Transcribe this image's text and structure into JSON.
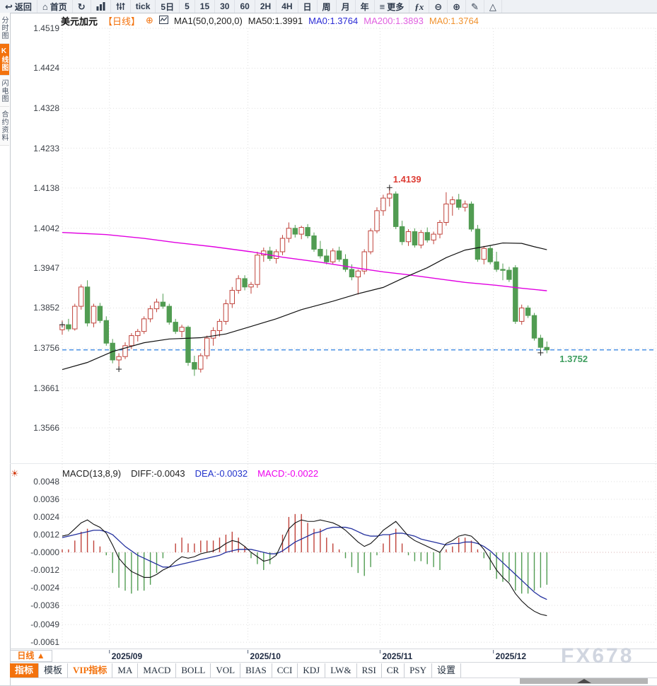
{
  "toolbar": {
    "items": [
      {
        "name": "back-button",
        "icon": "back",
        "label": "返回"
      },
      {
        "name": "home-button",
        "icon": "home",
        "label": "首页"
      },
      {
        "name": "refresh-button",
        "icon": "refresh",
        "label": ""
      },
      {
        "name": "chart-style-button",
        "icon": "bars",
        "label": ""
      },
      {
        "name": "indicator-style-button",
        "icon": "sliders",
        "label": ""
      },
      {
        "name": "period-tick-button",
        "icon": "",
        "label": "tick"
      },
      {
        "name": "period-5d-button",
        "icon": "",
        "label": "5日"
      },
      {
        "name": "period-5-button",
        "icon": "",
        "label": "5"
      },
      {
        "name": "period-15-button",
        "icon": "",
        "label": "15"
      },
      {
        "name": "period-30-button",
        "icon": "",
        "label": "30"
      },
      {
        "name": "period-60-button",
        "icon": "",
        "label": "60"
      },
      {
        "name": "period-2h-button",
        "icon": "",
        "label": "2H"
      },
      {
        "name": "period-4h-button",
        "icon": "",
        "label": "4H"
      },
      {
        "name": "period-day-button",
        "icon": "",
        "label": "日"
      },
      {
        "name": "period-week-button",
        "icon": "",
        "label": "周"
      },
      {
        "name": "period-month-button",
        "icon": "",
        "label": "月"
      },
      {
        "name": "period-year-button",
        "icon": "",
        "label": "年"
      },
      {
        "name": "more-button",
        "icon": "menu",
        "label": "更多"
      },
      {
        "name": "formula-button",
        "icon": "fx",
        "label": ""
      },
      {
        "name": "zoom-out-button",
        "icon": "zoomout",
        "label": ""
      },
      {
        "name": "zoom-in-button",
        "icon": "zoomin",
        "label": ""
      },
      {
        "name": "draw-button",
        "icon": "pencil",
        "label": ""
      },
      {
        "name": "shape-button",
        "icon": "triangle",
        "label": ""
      }
    ]
  },
  "sidebar": {
    "items": [
      {
        "label": "分时图",
        "active": false
      },
      {
        "label": "K线图",
        "active": true
      },
      {
        "label": "闪电图",
        "active": false
      },
      {
        "label": "合约资料",
        "active": false
      }
    ]
  },
  "chart_header": {
    "symbol": "美元加元",
    "period_tag": "【日线】",
    "add_icon": "⊕",
    "ma_settings": "MA1(50,0,200,0)",
    "ma50": "MA50:1.3991",
    "ma0_blue": "MA0:1.3764",
    "ma200": "MA200:1.3893",
    "ma0_orange": "MA0:1.3764"
  },
  "price_axis": {
    "labels": [
      "1.4519",
      "1.4424",
      "1.4328",
      "1.4233",
      "1.4138",
      "1.4042",
      "1.3947",
      "1.3852",
      "1.3756",
      "1.3661",
      "1.3566"
    ],
    "values": [
      1.4519,
      1.4424,
      1.4328,
      1.4233,
      1.4138,
      1.4042,
      1.3947,
      1.3852,
      1.3756,
      1.3661,
      1.3566
    ]
  },
  "macd_panel": {
    "title": "MACD(13,8,9)",
    "diff_label": "DIFF:-0.0043",
    "dea_label": "DEA:-0.0032",
    "macd_label": "MACD:-0.0022",
    "axis_labels": [
      "0.0048",
      "0.0036",
      "0.0024",
      "0.0012",
      "-0.0000",
      "-0.0012",
      "-0.0024",
      "-0.0036",
      "-0.0049",
      "-0.0061"
    ],
    "axis_values": [
      0.0048,
      0.0036,
      0.0024,
      0.0012,
      0,
      -0.0012,
      -0.0024,
      -0.0036,
      -0.0049,
      -0.0061
    ]
  },
  "x_axis": {
    "period_selector": "日线 ▲",
    "months": [
      {
        "label": "2025/09",
        "candle_index": 8
      },
      {
        "label": "2025/10",
        "candle_index": 30
      },
      {
        "label": "2025/11",
        "candle_index": 51
      },
      {
        "label": "2025/12",
        "candle_index": 69
      }
    ]
  },
  "bottom_tabs": [
    {
      "label": "指标",
      "active": true,
      "vip": false
    },
    {
      "label": "模板",
      "active": false,
      "vip": false
    },
    {
      "label": "VIP指标",
      "active": false,
      "vip": true
    },
    {
      "label": "MA",
      "active": false,
      "vip": false
    },
    {
      "label": "MACD",
      "active": false,
      "vip": false
    },
    {
      "label": "BOLL",
      "active": false,
      "vip": false
    },
    {
      "label": "VOL",
      "active": false,
      "vip": false
    },
    {
      "label": "BIAS",
      "active": false,
      "vip": false
    },
    {
      "label": "CCI",
      "active": false,
      "vip": false
    },
    {
      "label": "KDJ",
      "active": false,
      "vip": false
    },
    {
      "label": "LW&",
      "active": false,
      "vip": false
    },
    {
      "label": "RSI",
      "active": false,
      "vip": false
    },
    {
      "label": "CR",
      "active": false,
      "vip": false
    },
    {
      "label": "PSY",
      "active": false,
      "vip": false
    },
    {
      "label": "设置",
      "active": false,
      "vip": false
    }
  ],
  "annotations": {
    "high_label": "1.4139",
    "high_index": 52,
    "high_price": 1.4139,
    "last_label": "1.3752",
    "last_price": 1.3752,
    "crosses": [
      [
        0,
        1.3812
      ],
      [
        9,
        1.3706
      ],
      [
        52,
        1.4139
      ],
      [
        76,
        1.3745
      ]
    ]
  },
  "watermark": "FX678",
  "colors": {
    "up": "#c0433b",
    "down": "#519c52",
    "ma50": "#111111",
    "ma200": "#e100e1",
    "diff_line": "#111111",
    "dea_line": "#24319f",
    "hist_up": "#c0433b",
    "hist_down": "#519c52",
    "price_line": "#2b7de0",
    "grid": "#dfdfdf",
    "zero_line": "#d8b0b0",
    "cross": "#222222"
  },
  "chart_data": {
    "type": "candlestick",
    "symbol": "USD/CAD 美元加元",
    "period": "日线 (daily)",
    "x_axis_months": [
      "2025/09",
      "2025/10",
      "2025/11",
      "2025/12"
    ],
    "price_range": [
      1.3566,
      1.4519
    ],
    "candles": [
      [
        1.38,
        1.3822,
        1.3788,
        1.3812
      ],
      [
        1.3812,
        1.3826,
        1.3796,
        1.3802
      ],
      [
        1.3802,
        1.3862,
        1.3798,
        1.3856
      ],
      [
        1.3856,
        1.3908,
        1.3848,
        1.3902
      ],
      [
        1.3902,
        1.3918,
        1.3808,
        1.3816
      ],
      [
        1.3816,
        1.3862,
        1.3806,
        1.3856
      ],
      [
        1.3856,
        1.3864,
        1.3816,
        1.3822
      ],
      [
        1.3822,
        1.3832,
        1.3762,
        1.3768
      ],
      [
        1.3768,
        1.3778,
        1.372,
        1.3728
      ],
      [
        1.3728,
        1.3744,
        1.3706,
        1.3736
      ],
      [
        1.3736,
        1.377,
        1.373,
        1.3762
      ],
      [
        1.3762,
        1.3792,
        1.3754,
        1.3786
      ],
      [
        1.3786,
        1.3802,
        1.3772,
        1.3796
      ],
      [
        1.3796,
        1.3832,
        1.379,
        1.3826
      ],
      [
        1.3826,
        1.3858,
        1.3818,
        1.385
      ],
      [
        1.385,
        1.3874,
        1.3842,
        1.3866
      ],
      [
        1.3866,
        1.3886,
        1.385,
        1.3856
      ],
      [
        1.3856,
        1.3862,
        1.3812,
        1.3818
      ],
      [
        1.3818,
        1.3826,
        1.379,
        1.3796
      ],
      [
        1.3796,
        1.3812,
        1.3782,
        1.3806
      ],
      [
        1.3806,
        1.381,
        1.3714,
        1.3722
      ],
      [
        1.3722,
        1.3738,
        1.369,
        1.3706
      ],
      [
        1.3706,
        1.3744,
        1.3698,
        1.3738
      ],
      [
        1.3738,
        1.3786,
        1.373,
        1.378
      ],
      [
        1.378,
        1.3806,
        1.3762,
        1.3798
      ],
      [
        1.3798,
        1.3826,
        1.3784,
        1.382
      ],
      [
        1.382,
        1.3872,
        1.3812,
        1.3862
      ],
      [
        1.3862,
        1.3902,
        1.3852,
        1.3894
      ],
      [
        1.3894,
        1.393,
        1.3886,
        1.3922
      ],
      [
        1.3922,
        1.393,
        1.3894,
        1.3902
      ],
      [
        1.3902,
        1.3914,
        1.3886,
        1.3908
      ],
      [
        1.3908,
        1.3986,
        1.39,
        1.3978
      ],
      [
        1.3978,
        1.3996,
        1.3962,
        1.3988
      ],
      [
        1.3988,
        1.3998,
        1.3964,
        1.397
      ],
      [
        1.397,
        1.3992,
        1.3958,
        1.3986
      ],
      [
        1.3986,
        1.4026,
        1.3978,
        1.4018
      ],
      [
        1.4018,
        1.4056,
        1.4008,
        1.4042
      ],
      [
        1.4042,
        1.405,
        1.402,
        1.4028
      ],
      [
        1.4028,
        1.4048,
        1.4016,
        1.4044
      ],
      [
        1.4044,
        1.4052,
        1.4018,
        1.4024
      ],
      [
        1.4024,
        1.4032,
        1.3986,
        1.3992
      ],
      [
        1.3992,
        1.4012,
        1.397,
        1.3976
      ],
      [
        1.3976,
        1.3992,
        1.3956,
        1.3962
      ],
      [
        1.3962,
        1.3994,
        1.3956,
        1.3988
      ],
      [
        1.3988,
        1.3998,
        1.3962,
        1.3968
      ],
      [
        1.3968,
        1.398,
        1.3938,
        1.3944
      ],
      [
        1.3944,
        1.3956,
        1.3918,
        1.3926
      ],
      [
        1.3926,
        1.3944,
        1.3884,
        1.394
      ],
      [
        1.394,
        1.3992,
        1.3932,
        1.3986
      ],
      [
        1.3986,
        1.4042,
        1.398,
        1.4036
      ],
      [
        1.4036,
        1.4092,
        1.403,
        1.4084
      ],
      [
        1.4084,
        1.4122,
        1.4072,
        1.4114
      ],
      [
        1.4114,
        1.4139,
        1.4094,
        1.4124
      ],
      [
        1.4124,
        1.413,
        1.404,
        1.4046
      ],
      [
        1.4046,
        1.406,
        1.4002,
        1.401
      ],
      [
        1.401,
        1.404,
        1.4,
        1.4034
      ],
      [
        1.4034,
        1.4042,
        1.3996,
        1.4002
      ],
      [
        1.4002,
        1.4038,
        1.3994,
        1.4032
      ],
      [
        1.4032,
        1.4044,
        1.4008,
        1.4014
      ],
      [
        1.4014,
        1.4034,
        1.4004,
        1.4028
      ],
      [
        1.4028,
        1.4062,
        1.4018,
        1.4056
      ],
      [
        1.4056,
        1.4128,
        1.4048,
        1.41
      ],
      [
        1.41,
        1.4118,
        1.4072,
        1.411
      ],
      [
        1.411,
        1.4124,
        1.4086,
        1.4092
      ],
      [
        1.4092,
        1.4108,
        1.4082,
        1.41
      ],
      [
        1.41,
        1.4106,
        1.4034,
        1.404
      ],
      [
        1.404,
        1.405,
        1.3962,
        1.3968
      ],
      [
        1.3968,
        1.4,
        1.3956,
        1.3994
      ],
      [
        1.3994,
        1.4002,
        1.3956,
        1.3962
      ],
      [
        1.3962,
        1.3986,
        1.3938,
        1.3944
      ],
      [
        1.3944,
        1.3958,
        1.3918,
        1.3942
      ],
      [
        1.3942,
        1.395,
        1.3914,
        1.392
      ],
      [
        1.3948,
        1.3954,
        1.3814,
        1.382
      ],
      [
        1.382,
        1.386,
        1.3812,
        1.3852
      ],
      [
        1.3852,
        1.3858,
        1.3828,
        1.3834
      ],
      [
        1.3834,
        1.384,
        1.3774,
        1.378
      ],
      [
        1.378,
        1.3788,
        1.3748,
        1.3758
      ],
      [
        1.3758,
        1.3772,
        1.3744,
        1.3752
      ]
    ],
    "ma50": [
      [
        0,
        1.3705
      ],
      [
        4,
        1.3722
      ],
      [
        8,
        1.3748
      ],
      [
        13,
        1.3769
      ],
      [
        17,
        1.3778
      ],
      [
        22,
        1.3781
      ],
      [
        26,
        1.379
      ],
      [
        30,
        1.3808
      ],
      [
        34,
        1.3826
      ],
      [
        38,
        1.3848
      ],
      [
        43,
        1.3868
      ],
      [
        47,
        1.3886
      ],
      [
        51,
        1.3901
      ],
      [
        54,
        1.3922
      ],
      [
        58,
        1.3948
      ],
      [
        61,
        1.3972
      ],
      [
        64,
        1.399
      ],
      [
        68,
        1.4001
      ],
      [
        70,
        1.4007
      ],
      [
        73,
        1.4006
      ],
      [
        75,
        1.3998
      ],
      [
        77,
        1.3991
      ]
    ],
    "ma200": [
      [
        0,
        1.4032
      ],
      [
        7,
        1.4027
      ],
      [
        13,
        1.4018
      ],
      [
        18,
        1.4008
      ],
      [
        24,
        1.3998
      ],
      [
        30,
        1.3986
      ],
      [
        35,
        1.3973
      ],
      [
        41,
        1.3961
      ],
      [
        46,
        1.3949
      ],
      [
        51,
        1.3938
      ],
      [
        55,
        1.3931
      ],
      [
        60,
        1.3921
      ],
      [
        64,
        1.3913
      ],
      [
        69,
        1.3906
      ],
      [
        73,
        1.3899
      ],
      [
        77,
        1.3893
      ]
    ],
    "macd": {
      "histogram_rule": "2*(dif-dea)",
      "axis_range": [
        -0.0061,
        0.0048
      ],
      "dif": [
        0.0011,
        0.0012,
        0.0016,
        0.002,
        0.0022,
        0.0019,
        0.0017,
        0.0013,
        0.0005,
        -0.0004,
        -0.0009,
        -0.0013,
        -0.0015,
        -0.0017,
        -0.0017,
        -0.0015,
        -0.0012,
        -0.001,
        -0.0006,
        -0.0003,
        -0.0004,
        -0.0003,
        -0.0001,
        0.0,
        0.0001,
        0.0003,
        0.0006,
        0.0008,
        0.0007,
        0.0004,
        0.0,
        -0.0003,
        -0.0006,
        -0.0005,
        -0.0002,
        0.0007,
        0.0016,
        0.002,
        0.0022,
        0.0021,
        0.0021,
        0.0022,
        0.0021,
        0.002,
        0.0018,
        0.0015,
        0.0011,
        0.0007,
        0.0004,
        0.0006,
        0.001,
        0.0015,
        0.0018,
        0.0021,
        0.0016,
        0.0011,
        0.0008,
        0.0006,
        0.0004,
        0.0002,
        0.0,
        0.0006,
        0.0008,
        0.0011,
        0.0012,
        0.0011,
        0.0007,
        0.0002,
        -0.0005,
        -0.0012,
        -0.0017,
        -0.0021,
        -0.0028,
        -0.0033,
        -0.0037,
        -0.004,
        -0.0042,
        -0.0043
      ],
      "dea": [
        0.001,
        0.0011,
        0.0012,
        0.0013,
        0.0014,
        0.0015,
        0.0015,
        0.0014,
        0.0012,
        0.0008,
        0.0004,
        0.0001,
        -0.0002,
        -0.0004,
        -0.0006,
        -0.0008,
        -0.001,
        -0.001,
        -0.0009,
        -0.0008,
        -0.0007,
        -0.0006,
        -0.0005,
        -0.0004,
        -0.0003,
        -0.0002,
        0.0,
        0.0001,
        0.0002,
        0.0002,
        0.0002,
        0.0001,
        0.0,
        -0.0001,
        -0.0001,
        0.0001,
        0.0004,
        0.0007,
        0.0009,
        0.0011,
        0.0013,
        0.0014,
        0.0016,
        0.0017,
        0.0017,
        0.0017,
        0.0016,
        0.0014,
        0.0012,
        0.0011,
        0.0011,
        0.0012,
        0.0012,
        0.0013,
        0.0013,
        0.0012,
        0.0011,
        0.0009,
        0.0008,
        0.0007,
        0.0006,
        0.0005,
        0.0006,
        0.0006,
        0.0007,
        0.0007,
        0.0006,
        0.0004,
        0.0001,
        -0.0003,
        -0.0007,
        -0.0011,
        -0.0015,
        -0.0019,
        -0.0023,
        -0.0027,
        -0.003,
        -0.0032
      ]
    }
  }
}
